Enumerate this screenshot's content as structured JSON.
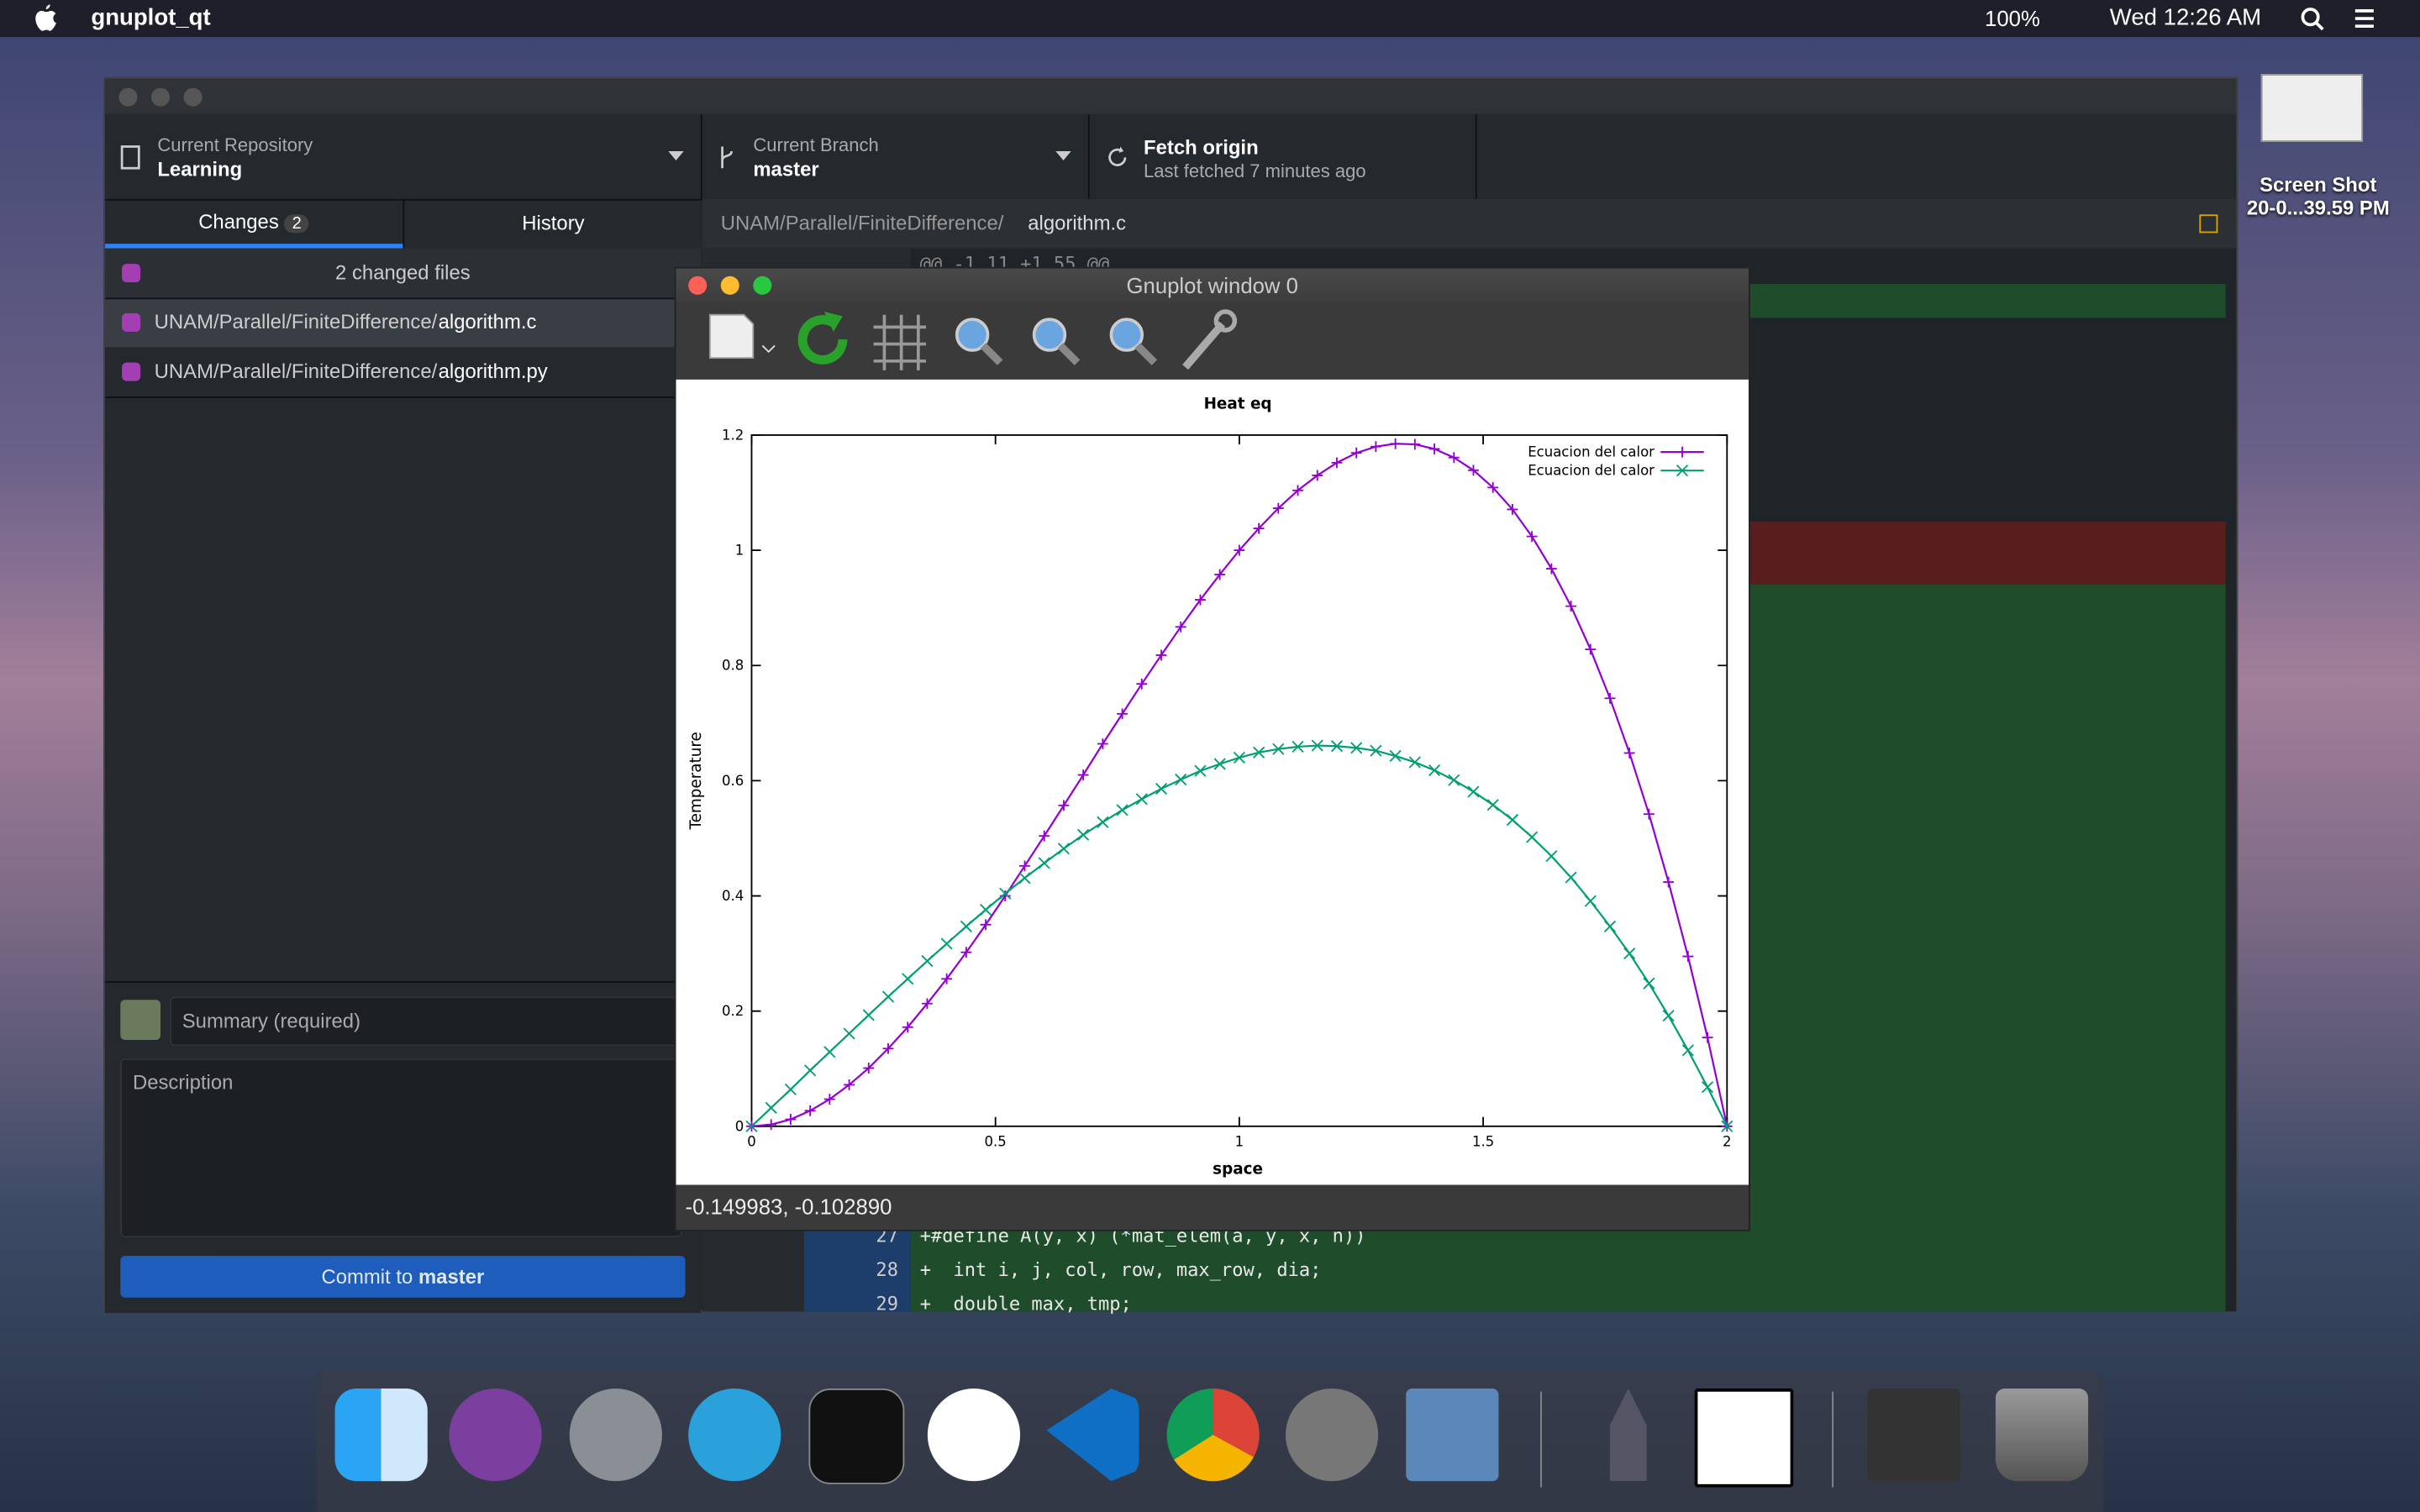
{
  "menubar": {
    "app": "gnuplot_qt",
    "battery": "100%",
    "clock": "Wed 12:26 AM"
  },
  "github": {
    "repo_label": "Current Repository",
    "repo": "Learning",
    "branch_label": "Current Branch",
    "branch": "master",
    "fetch": "Fetch origin",
    "fetched": "Last fetched 7 minutes ago",
    "tab_changes": "Changes",
    "changes_count": "2",
    "tab_history": "History",
    "changed_files": "2 changed files",
    "files": [
      {
        "dir": "UNAM/Parallel/FiniteDifference/",
        "name": "algorithm.c"
      },
      {
        "dir": "UNAM/Parallel/FiniteDifference/",
        "name": "algorithm.py"
      }
    ],
    "path_dir": "UNAM/Parallel/FiniteDifference/",
    "path_file": "algorithm.c",
    "hunk": "@@ -1,11 +1,55 @@",
    "summary": "Summary (required)",
    "description": "Description",
    "commit_prefix": "Commit to",
    "commit_branch": "master",
    "code": [
      {
        "num": "27",
        "text": "+#define A(y, x) (*mat_elem(a, y, x, n))"
      },
      {
        "num": "28",
        "text": "+  int i, j, col, row, max_row, dia;"
      },
      {
        "num": "29",
        "text": "+  double max, tmp;"
      }
    ]
  },
  "gnuplot": {
    "title": "Gnuplot window 0",
    "status": "-0.149983, -0.102890"
  },
  "desktop": {
    "file_label": [
      "Screen Shot",
      "20-0...39.59 PM"
    ]
  },
  "chart_data": {
    "type": "line",
    "title": "Heat eq",
    "xlabel": "space",
    "ylabel": "Temperature",
    "x": [
      0,
      0.04,
      0.08,
      0.12,
      0.16,
      0.2,
      0.24,
      0.28,
      0.32,
      0.36,
      0.4,
      0.44,
      0.48,
      0.52,
      0.56,
      0.6,
      0.64,
      0.68,
      0.72,
      0.76,
      0.8,
      0.84,
      0.88,
      0.92,
      0.96,
      1,
      1.04,
      1.08,
      1.12,
      1.16,
      1.2,
      1.24,
      1.28,
      1.32,
      1.36,
      1.4,
      1.44,
      1.48,
      1.52,
      1.56,
      1.6,
      1.64,
      1.68,
      1.72,
      1.76,
      1.8,
      1.84,
      1.88,
      1.92,
      1.96,
      2
    ],
    "series": [
      {
        "name": "Ecuacion del calor",
        "color": "#9400d3",
        "marker": "plus",
        "values": [
          0,
          0.003,
          0.012,
          0.027,
          0.047,
          0.072,
          0.101,
          0.135,
          0.172,
          0.213,
          0.256,
          0.302,
          0.35,
          0.4,
          0.452,
          0.504,
          0.557,
          0.61,
          0.664,
          0.716,
          0.768,
          0.818,
          0.867,
          0.914,
          0.958,
          1,
          1.038,
          1.073,
          1.104,
          1.13,
          1.152,
          1.169,
          1.18,
          1.185,
          1.184,
          1.176,
          1.161,
          1.139,
          1.109,
          1.071,
          1.024,
          0.968,
          0.903,
          0.828,
          0.743,
          0.648,
          0.542,
          0.424,
          0.295,
          0.154,
          0
        ]
      },
      {
        "name": "Ecuacion del calor",
        "color": "#009e73",
        "marker": "cross",
        "values": [
          0,
          0.032,
          0.064,
          0.097,
          0.129,
          0.161,
          0.193,
          0.225,
          0.256,
          0.287,
          0.317,
          0.347,
          0.376,
          0.404,
          0.431,
          0.457,
          0.482,
          0.506,
          0.528,
          0.549,
          0.568,
          0.586,
          0.602,
          0.617,
          0.629,
          0.64,
          0.649,
          0.655,
          0.659,
          0.661,
          0.66,
          0.657,
          0.652,
          0.643,
          0.632,
          0.618,
          0.601,
          0.581,
          0.558,
          0.532,
          0.502,
          0.469,
          0.432,
          0.391,
          0.347,
          0.3,
          0.248,
          0.192,
          0.132,
          0.068,
          0
        ]
      }
    ],
    "xlim": [
      0,
      2
    ],
    "ylim": [
      0,
      1.2
    ],
    "xticks": [
      0,
      0.5,
      1,
      1.5,
      2
    ],
    "yticks": [
      0,
      0.2,
      0.4,
      0.6,
      0.8,
      1,
      1.2
    ],
    "legend": "top-right"
  }
}
